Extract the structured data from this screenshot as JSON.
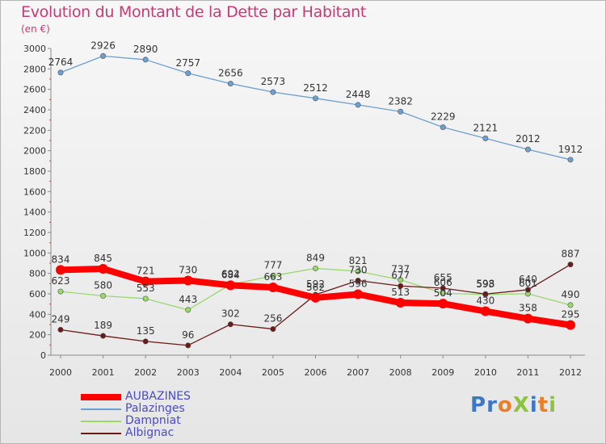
{
  "title": "Evolution du Montant de la Dette par Habitant",
  "subtitle": "(en €)",
  "logo_text": "ProXiti",
  "chart_data": {
    "type": "line",
    "title": "Evolution du Montant de la Dette par Habitant",
    "subtitle": "(en €)",
    "ylim": [
      0,
      3000
    ],
    "yticks": [
      0,
      200,
      400,
      600,
      800,
      1000,
      1200,
      1400,
      1600,
      1800,
      2000,
      2200,
      2400,
      2600,
      2800,
      3000
    ],
    "x": [
      "2000",
      "2001",
      "2002",
      "2003",
      "2004",
      "2005",
      "2006",
      "2007",
      "2008",
      "2009",
      "2010",
      "2011",
      "2012"
    ],
    "grid": false,
    "legend_position": "bottom-left",
    "series": [
      {
        "name": "AUBAZINES",
        "color": "#ff0000",
        "values": [
          834,
          845,
          721,
          730,
          684,
          663,
          562,
          596,
          513,
          504,
          430,
          358,
          295
        ]
      },
      {
        "name": "Palazinges",
        "color": "#6d9fd0",
        "values": [
          2764,
          2926,
          2890,
          2757,
          2656,
          2573,
          2512,
          2448,
          2382,
          2229,
          2121,
          2012,
          1912
        ]
      },
      {
        "name": "Dampniat",
        "color": "#9ad86b",
        "values": [
          623,
          580,
          553,
          443,
          692,
          777,
          849,
          821,
          737,
          606,
          593,
          601,
          490
        ]
      },
      {
        "name": "Albignac",
        "color": "#6b1a1a",
        "values": [
          249,
          189,
          135,
          96,
          302,
          256,
          592,
          730,
          677,
          655,
          598,
          640,
          887
        ]
      }
    ]
  }
}
